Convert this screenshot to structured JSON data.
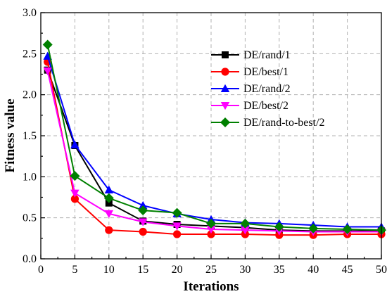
{
  "chart_data": {
    "type": "line",
    "title": "",
    "xlabel": "Iterations",
    "ylabel": "Fitness value",
    "xlim": [
      0,
      50
    ],
    "ylim": [
      0.0,
      3.0
    ],
    "xticks": [
      0,
      5,
      10,
      15,
      20,
      25,
      30,
      35,
      40,
      45,
      50
    ],
    "yticks": [
      0.0,
      0.5,
      1.0,
      1.5,
      2.0,
      2.5,
      3.0
    ],
    "xtick_labels": [
      "0",
      "5",
      "10",
      "15",
      "20",
      "25",
      "30",
      "35",
      "40",
      "45",
      "50"
    ],
    "ytick_labels": [
      "0.0",
      "0.5",
      "1.0",
      "1.5",
      "2.0",
      "2.5",
      "3.0"
    ],
    "grid": true,
    "legend_position": "top-right",
    "x": [
      1,
      5,
      10,
      15,
      20,
      25,
      30,
      35,
      40,
      45,
      50
    ],
    "series": [
      {
        "name": "DE/rand/1",
        "color": "#000000",
        "marker": "square",
        "values": [
          2.3,
          1.38,
          0.68,
          0.46,
          0.42,
          0.4,
          0.38,
          0.35,
          0.34,
          0.34,
          0.34
        ]
      },
      {
        "name": "DE/best/1",
        "color": "#ff0000",
        "marker": "circle",
        "values": [
          2.4,
          0.73,
          0.35,
          0.33,
          0.3,
          0.3,
          0.3,
          0.29,
          0.29,
          0.3,
          0.3
        ]
      },
      {
        "name": "DE/rand/2",
        "color": "#0000ff",
        "marker": "triangle-up",
        "values": [
          2.47,
          1.39,
          0.84,
          0.65,
          0.55,
          0.48,
          0.44,
          0.43,
          0.41,
          0.39,
          0.39
        ]
      },
      {
        "name": "DE/best/2",
        "color": "#ff00ff",
        "marker": "triangle-down",
        "values": [
          2.29,
          0.8,
          0.55,
          0.45,
          0.4,
          0.36,
          0.35,
          0.34,
          0.33,
          0.33,
          0.33
        ]
      },
      {
        "name": "DE/rand-to-best/2",
        "color": "#008000",
        "marker": "diamond",
        "values": [
          2.61,
          1.01,
          0.74,
          0.59,
          0.56,
          0.43,
          0.43,
          0.39,
          0.37,
          0.36,
          0.35
        ]
      }
    ]
  }
}
